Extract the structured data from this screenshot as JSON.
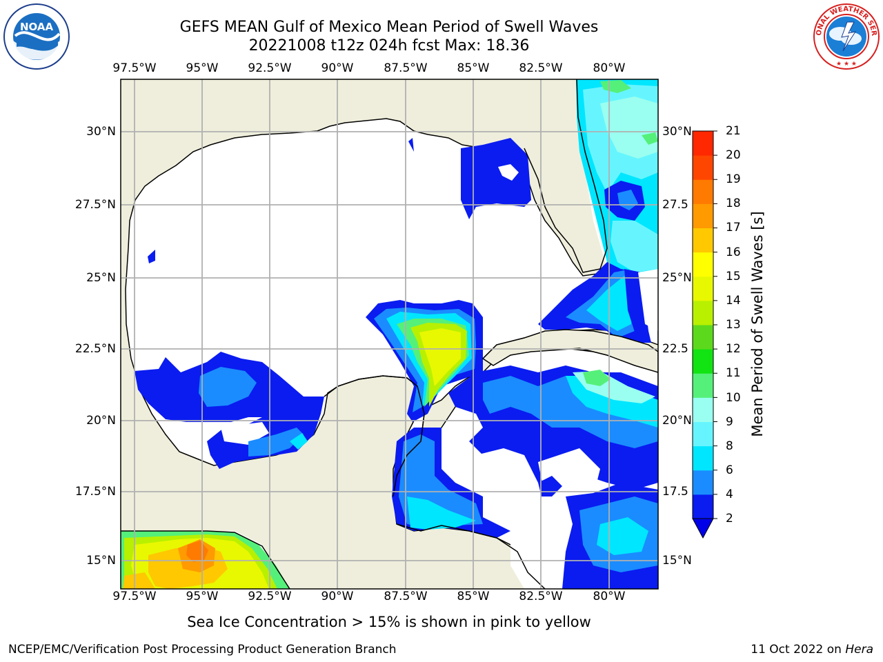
{
  "header": {
    "title_line1": "GEFS MEAN Gulf of Mexico Mean Period of Swell Waves",
    "title_line2": "20221008 t12z 024h fcst   Max: 18.36"
  },
  "logos": {
    "left": {
      "name": "noaa-logo",
      "text": "NOAA",
      "ring_text": "NATIONAL OCEANIC AND ATMOSPHERIC ADMINISTRATION · U.S. DEPARTMENT OF COMMERCE"
    },
    "right": {
      "name": "nws-logo",
      "ring_text": "NATIONAL WEATHER SERVICE"
    }
  },
  "map": {
    "region": "Gulf of Mexico",
    "lon_labels": [
      "97.5°W",
      "95°W",
      "92.5°W",
      "90°W",
      "87.5°W",
      "85°W",
      "82.5°W",
      "80°W"
    ],
    "lat_labels_left": [
      "30°N",
      "27.5°N",
      "25°N",
      "22.5°N",
      "20°N",
      "17.5°N",
      "15°N"
    ],
    "lat_labels_right": [
      "30°N",
      "27.5",
      "25°N",
      "22.5",
      "20°N",
      "17.5",
      "15°N"
    ],
    "colors": {
      "land": "#efeedc",
      "ocean_below_threshold": "#ffffff",
      "grid": "#b0b0b0",
      "coast": "#000000"
    }
  },
  "colorbar": {
    "label": "Mean Period of Swell Waves [s]",
    "ticks": [
      "21",
      "20",
      "19",
      "18",
      "17",
      "16",
      "15",
      "14",
      "13",
      "12",
      "11",
      "10",
      "9",
      "8",
      "6",
      "4",
      "2"
    ],
    "levels": [
      2,
      4,
      6,
      8,
      9,
      10,
      11,
      12,
      13,
      14,
      15,
      16,
      17,
      18,
      19,
      20,
      21
    ],
    "colors": [
      "#0a1cf0",
      "#1a8cff",
      "#00e6ff",
      "#66f5ff",
      "#9afff0",
      "#55f07a",
      "#12e312",
      "#5cd91c",
      "#b8f000",
      "#e8f800",
      "#ffff00",
      "#ffc800",
      "#ff9a00",
      "#ff7a00",
      "#ff4600",
      "#ff2800",
      "#ff0000"
    ],
    "under_color": "#0000e8"
  },
  "footer": {
    "note": "Sea Ice Concentration > 15% is shown in pink to yellow",
    "left": "NCEP/EMC/Verification Post Processing Product Generation Branch",
    "right_date": "11 Oct 2022 on",
    "right_host": "Hera"
  }
}
